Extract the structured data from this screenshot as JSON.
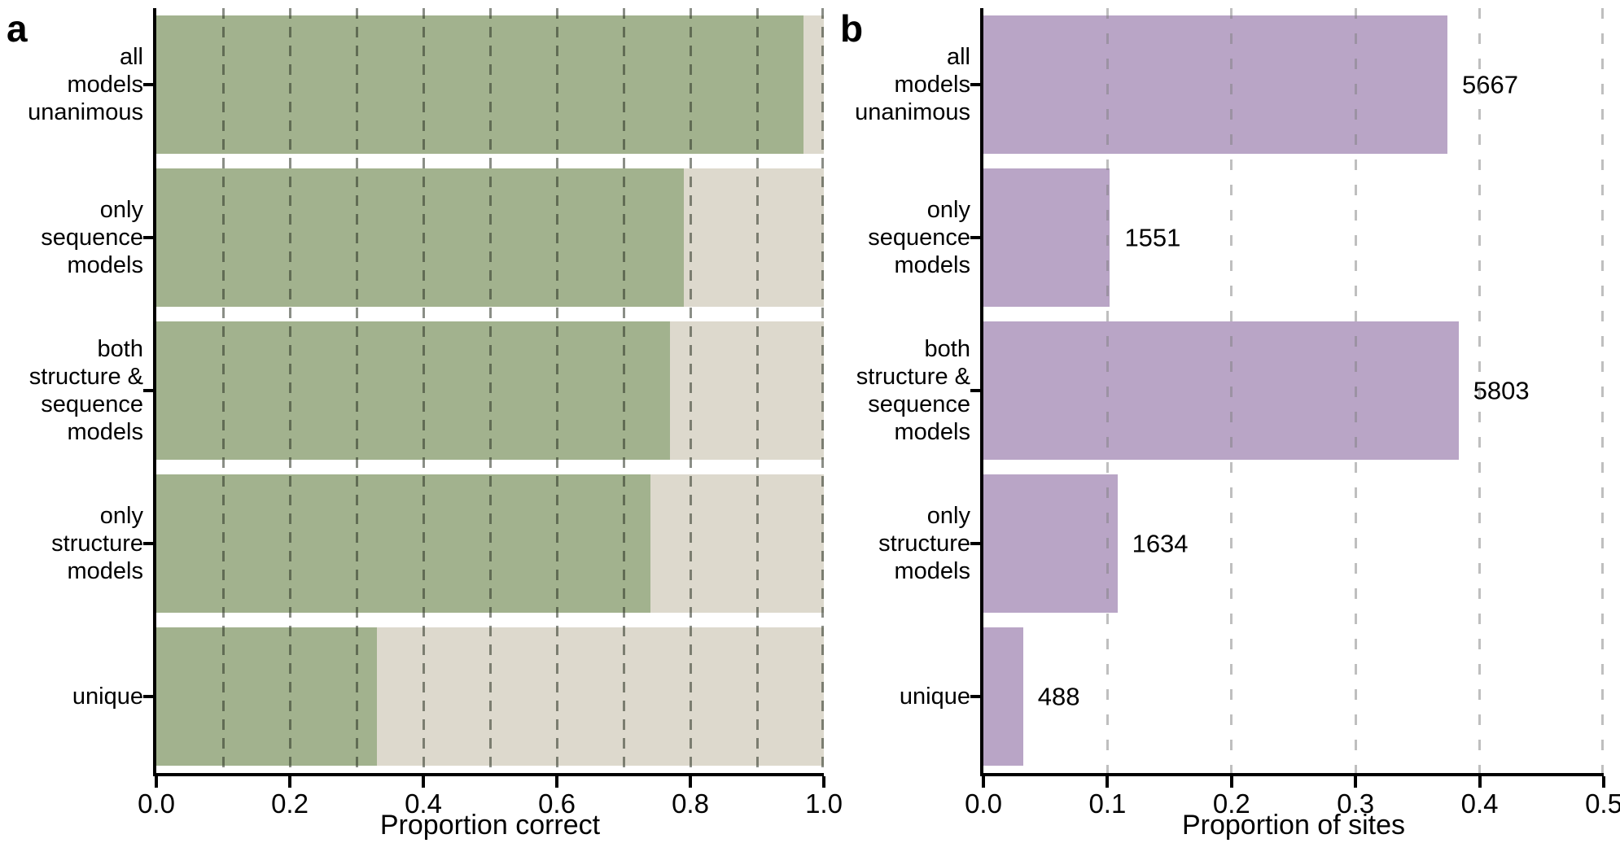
{
  "figure_colors": {
    "panel_a_bar": "#a2b28e",
    "panel_a_background_bar": "#ddd9cd",
    "panel_b_bar": "#b9a5c6",
    "spine": "#000000",
    "panel_a_gridline": "#5c6552",
    "panel_b_gridline": "#c7c7c7",
    "text": "#000000"
  },
  "chart_data": [
    {
      "id": "panel_a",
      "panel_letter": "a",
      "type": "bar",
      "orientation": "horizontal",
      "title": "",
      "xlabel": "Proportion correct",
      "ylabel": "",
      "categories": [
        "all models unanimous",
        "only sequence models",
        "both structure & sequence models",
        "only structure models",
        "unique"
      ],
      "category_lines": [
        [
          "all",
          "models",
          "unanimous"
        ],
        [
          "only",
          "sequence",
          "models"
        ],
        [
          "both",
          "structure &",
          "sequence",
          "models"
        ],
        [
          "only",
          "structure",
          "models"
        ],
        [
          "unique"
        ]
      ],
      "values": [
        0.97,
        0.79,
        0.77,
        0.74,
        0.33
      ],
      "stacked_remainder_to": 1.0,
      "xlim": [
        0.0,
        1.0
      ],
      "xticks": [
        0.0,
        0.2,
        0.4,
        0.6,
        0.8,
        1.0
      ],
      "xtick_labels": [
        "0.0",
        "0.2",
        "0.4",
        "0.6",
        "0.8",
        "1.0"
      ],
      "gridlines_every": 0.1,
      "grid_style": "dashed vertical, drawn over bars",
      "legend": "none"
    },
    {
      "id": "panel_b",
      "panel_letter": "b",
      "type": "bar",
      "orientation": "horizontal",
      "title": "",
      "xlabel": "Proportion of sites",
      "ylabel": "",
      "categories": [
        "all models unanimous",
        "only sequence models",
        "both structure & sequence models",
        "only structure models",
        "unique"
      ],
      "category_lines": [
        [
          "all",
          "models",
          "unanimous"
        ],
        [
          "only",
          "sequence",
          "models"
        ],
        [
          "both",
          "structure &",
          "sequence",
          "models"
        ],
        [
          "only",
          "structure",
          "models"
        ],
        [
          "unique"
        ]
      ],
      "values": [
        0.374,
        0.102,
        0.383,
        0.108,
        0.032
      ],
      "bar_count_labels": [
        "5667",
        "1551",
        "5803",
        "1634",
        "488"
      ],
      "xlim": [
        0.0,
        0.5
      ],
      "xticks": [
        0.0,
        0.1,
        0.2,
        0.3,
        0.4,
        0.5
      ],
      "xtick_labels": [
        "0.0",
        "0.1",
        "0.2",
        "0.3",
        "0.4",
        "0.5"
      ],
      "gridlines_every": 0.1,
      "grid_style": "dashed vertical, light gray, visible over bars",
      "legend": "none"
    }
  ]
}
